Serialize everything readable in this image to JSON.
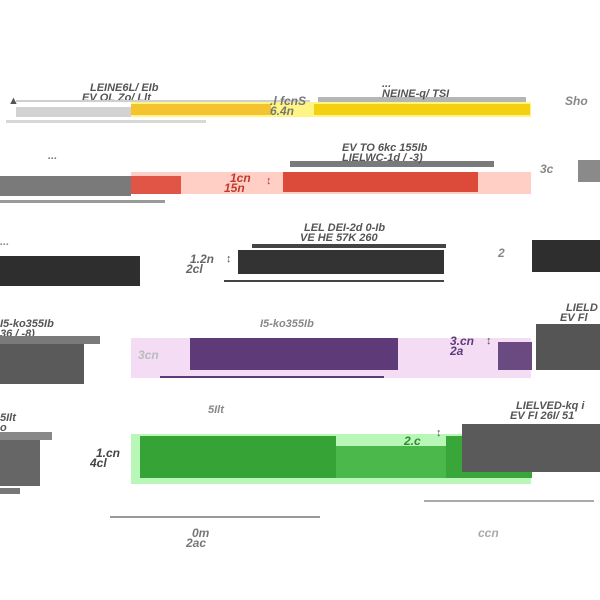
{
  "title": "",
  "rows": [
    {
      "color": "#f4d03f",
      "fill": "#f5e21a",
      "panel_color": "#fff585",
      "labels": {
        "upper_left_1": "LEINE6L/ EIb",
        "upper_left_2": "EV OL Zo/ Llt",
        "upper_right_1": "...",
        "upper_right_2": "NEINE-q/ TSI",
        "dim_1": ".l fcnS",
        "dim_2": "6.4n",
        "side": "Sho"
      }
    },
    {
      "color": "#d94c3d",
      "fill": "#e05545",
      "panel_color": "#ffcfc5",
      "labels": {
        "upper_left_1": "...",
        "upper_right_1": "EV TO 6kc 155Ib",
        "upper_right_2": "LIELWC-1d / -3)",
        "dim_1": "1cn",
        "dim_2": "15n",
        "side": "3c"
      }
    },
    {
      "color": "#2b2b2b",
      "fill": "#333333",
      "panel_color": "#ffffff",
      "labels": {
        "upper_left_1": "...",
        "upper_right_1": "LEL DEI-2d 0-Ib",
        "upper_right_2": "VE HE 57K 260",
        "dim_1": "1.2n",
        "dim_2": "2cl",
        "side": "2"
      }
    },
    {
      "color": "#5c3a73",
      "fill": "#5e3a78",
      "panel_color": "#f5dcf5",
      "labels": {
        "upper_left_1": "I5-ko355Ib",
        "upper_left_2": "36 / -8)",
        "upper_right_1": "LIELD",
        "upper_right_2": "EV Fl",
        "dim_1": "3.cn",
        "dim_2": "2a",
        "side": "3cn"
      }
    },
    {
      "color": "#2e8b2e",
      "fill": "#36a336",
      "panel_color": "#b8f7b8",
      "labels": {
        "upper_left_1": "5Ilt",
        "upper_left_2": "o",
        "upper_right_1": "LIELVED-kq i",
        "upper_right_2": "EV FI 26I/ 51",
        "dim_1": "1.cn",
        "dim_2": "4cl",
        "side": "2.c"
      }
    }
  ],
  "footer": {
    "dim_1": "0m",
    "dim_2": "2ac",
    "side": "ccn"
  }
}
